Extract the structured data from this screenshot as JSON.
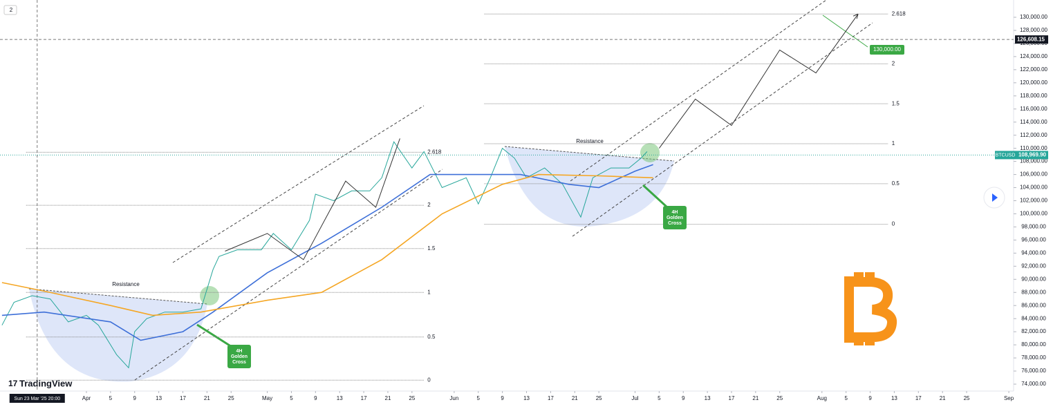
{
  "chart_data": {
    "type": "line",
    "legend_badge": "2",
    "xlim": [
      "2025-03-17T16:00",
      "2025-09-01T19:00"
    ],
    "ylim": [
      72945,
      132637
    ],
    "xticks": [
      {
        "value": "2025-04-01",
        "label": "Apr"
      },
      {
        "value": "2025-04-05",
        "label": "5"
      },
      {
        "value": "2025-04-09",
        "label": "9"
      },
      {
        "value": "2025-04-13",
        "label": "13"
      },
      {
        "value": "2025-04-17",
        "label": "17"
      },
      {
        "value": "2025-04-21",
        "label": "21"
      },
      {
        "value": "2025-04-25",
        "label": "25"
      },
      {
        "value": "2025-05-01",
        "label": "May"
      },
      {
        "value": "2025-05-05",
        "label": "5"
      },
      {
        "value": "2025-05-09",
        "label": "9"
      },
      {
        "value": "2025-05-13",
        "label": "13"
      },
      {
        "value": "2025-05-17",
        "label": "17"
      },
      {
        "value": "2025-05-21",
        "label": "21"
      },
      {
        "value": "2025-05-25",
        "label": "25"
      },
      {
        "value": "2025-06-01",
        "label": "Jun"
      },
      {
        "value": "2025-06-05",
        "label": "5"
      },
      {
        "value": "2025-06-09",
        "label": "9"
      },
      {
        "value": "2025-06-13",
        "label": "13"
      },
      {
        "value": "2025-06-17",
        "label": "17"
      },
      {
        "value": "2025-06-21",
        "label": "21"
      },
      {
        "value": "2025-06-25",
        "label": "25"
      },
      {
        "value": "2025-07-01",
        "label": "Jul"
      },
      {
        "value": "2025-07-05",
        "label": "5"
      },
      {
        "value": "2025-07-09",
        "label": "9"
      },
      {
        "value": "2025-07-13",
        "label": "13"
      },
      {
        "value": "2025-07-17",
        "label": "17"
      },
      {
        "value": "2025-07-21",
        "label": "21"
      },
      {
        "value": "2025-07-25",
        "label": "25"
      },
      {
        "value": "2025-08-01",
        "label": "Aug"
      },
      {
        "value": "2025-08-05",
        "label": "5"
      },
      {
        "value": "2025-08-09",
        "label": "9"
      },
      {
        "value": "2025-08-13",
        "label": "13"
      },
      {
        "value": "2025-08-17",
        "label": "17"
      },
      {
        "value": "2025-08-21",
        "label": "21"
      },
      {
        "value": "2025-08-25",
        "label": "25"
      },
      {
        "value": "2025-09-01",
        "label": "Sep"
      }
    ],
    "yticks": [
      {
        "value": 74000,
        "label": "74,000.00"
      },
      {
        "value": 76000,
        "label": "76,000.00"
      },
      {
        "value": 78000,
        "label": "78,000.00"
      },
      {
        "value": 80000,
        "label": "80,000.00"
      },
      {
        "value": 82000,
        "label": "82,000.00"
      },
      {
        "value": 84000,
        "label": "84,000.00"
      },
      {
        "value": 86000,
        "label": "86,000.00"
      },
      {
        "value": 88000,
        "label": "88,000.00"
      },
      {
        "value": 90000,
        "label": "90,000.00"
      },
      {
        "value": 92000,
        "label": "92,000.00"
      },
      {
        "value": 94000,
        "label": "94,000.00"
      },
      {
        "value": 96000,
        "label": "96,000.00"
      },
      {
        "value": 98000,
        "label": "98,000.00"
      },
      {
        "value": 100000,
        "label": "100,000.00"
      },
      {
        "value": 102000,
        "label": "102,000.00"
      },
      {
        "value": 104000,
        "label": "104,000.00"
      },
      {
        "value": 106000,
        "label": "106,000.00"
      },
      {
        "value": 108000,
        "label": "108,000.00"
      },
      {
        "value": 110000,
        "label": "110,000.00"
      },
      {
        "value": 112000,
        "label": "112,000.00"
      },
      {
        "value": 114000,
        "label": "114,000.00"
      },
      {
        "value": 116000,
        "label": "116,000.00"
      },
      {
        "value": 118000,
        "label": "118,000.00"
      },
      {
        "value": 120000,
        "label": "120,000.00"
      },
      {
        "value": 122000,
        "label": "122,000.00"
      },
      {
        "value": 124000,
        "label": "124,000.00"
      },
      {
        "value": 126000,
        "label": "126,000.00"
      },
      {
        "value": 128000,
        "label": "128,000.00"
      },
      {
        "value": 130000,
        "label": "130,000.00"
      }
    ],
    "series": [
      {
        "color": "#26a69a",
        "width": 1,
        "x": [
          "2025-03-18",
          "2025-03-20",
          "2025-03-23",
          "2025-03-26",
          "2025-03-29",
          "2025-04-01",
          "2025-04-03",
          "2025-04-06",
          "2025-04-08",
          "2025-04-09",
          "2025-04-11",
          "2025-04-14",
          "2025-04-17",
          "2025-04-20",
          "2025-04-22",
          "2025-04-23",
          "2025-04-26",
          "2025-04-30",
          "2025-05-02",
          "2025-05-05",
          "2025-05-08",
          "2025-05-09",
          "2025-05-12",
          "2025-05-15",
          "2025-05-18",
          "2025-05-20",
          "2025-05-22",
          "2025-05-25",
          "2025-05-27",
          "2025-05-30",
          "2025-06-03",
          "2025-06-05",
          "2025-06-07",
          "2025-06-09",
          "2025-06-11",
          "2025-06-13",
          "2025-06-16",
          "2025-06-19",
          "2025-06-22",
          "2025-06-24",
          "2025-06-27",
          "2025-06-30",
          "2025-07-02",
          "2025-07-03"
        ],
        "values": [
          83000,
          86500,
          87500,
          87000,
          83500,
          84500,
          83000,
          78500,
          76500,
          82000,
          84000,
          85000,
          85000,
          85500,
          91500,
          93500,
          94500,
          94500,
          97000,
          94500,
          99000,
          103000,
          102000,
          103500,
          103500,
          105500,
          111000,
          107000,
          109500,
          104000,
          105500,
          101500,
          105500,
          110000,
          108500,
          105500,
          107000,
          104500,
          99500,
          105500,
          107000,
          107000,
          108500,
          109500
        ]
      },
      {
        "color": "#3d6fd8",
        "width": 1.6,
        "x": [
          "2025-03-18",
          "2025-03-25",
          "2025-04-05",
          "2025-04-10",
          "2025-04-17",
          "2025-04-22",
          "2025-05-01",
          "2025-05-10",
          "2025-05-20",
          "2025-05-28",
          "2025-06-05",
          "2025-06-12",
          "2025-06-20",
          "2025-06-25",
          "2025-07-01",
          "2025-07-04"
        ],
        "values": [
          84500,
          85000,
          83500,
          80700,
          82000,
          85000,
          91000,
          95500,
          101000,
          106000,
          106000,
          106000,
          104500,
          104000,
          106500,
          107500
        ]
      },
      {
        "color": "#f5a623",
        "width": 1.6,
        "x": [
          "2025-03-18",
          "2025-03-25",
          "2025-04-05",
          "2025-04-12",
          "2025-04-20",
          "2025-05-01",
          "2025-05-10",
          "2025-05-20",
          "2025-05-30",
          "2025-06-09",
          "2025-06-15",
          "2025-06-25",
          "2025-07-04"
        ],
        "values": [
          89500,
          88200,
          86000,
          84500,
          85000,
          86800,
          88000,
          93000,
          100000,
          104500,
          106000,
          105800,
          105500
        ]
      },
      {
        "color": "#333333",
        "width": 1,
        "x": [
          "2025-04-24",
          "2025-05-01",
          "2025-05-07",
          "2025-05-14",
          "2025-05-19",
          "2025-05-23"
        ],
        "values": [
          94300,
          97000,
          93000,
          105000,
          101000,
          111500
        ]
      },
      {
        "color": "#333333",
        "width": 1,
        "x": [
          "2025-07-05",
          "2025-07-11",
          "2025-07-17",
          "2025-07-25",
          "2025-07-31",
          "2025-08-07"
        ],
        "values": [
          110000,
          117500,
          113500,
          125000,
          121500,
          130500
        ]
      }
    ],
    "fib_levels": [
      {
        "from": "2025-03-22",
        "to": "2025-05-27",
        "levels": [
          {
            "ratio": 0,
            "price": 74600
          },
          {
            "ratio": 0.5,
            "price": 81200
          },
          {
            "ratio": 1,
            "price": 88000
          },
          {
            "ratio": 1.5,
            "price": 94700
          },
          {
            "ratio": 2,
            "price": 101300
          },
          {
            "ratio": 2.618,
            "price": 109400
          }
        ]
      },
      {
        "from": "2025-06-06",
        "to": "2025-08-12",
        "levels": [
          {
            "ratio": 0,
            "price": 98400
          },
          {
            "ratio": 0.5,
            "price": 104600
          },
          {
            "ratio": 1,
            "price": 110700
          },
          {
            "ratio": 1.5,
            "price": 116800
          },
          {
            "ratio": 2,
            "price": 122900
          },
          {
            "ratio": 2.618,
            "price": 130500
          }
        ]
      }
    ],
    "annotations": {
      "resistance": [
        "Resistance",
        "Resistance"
      ],
      "golden_cross": [
        [
          "4H",
          "Golden",
          "Cross"
        ],
        [
          "4H",
          "Golden",
          "Cross"
        ]
      ],
      "target": {
        "value": 130000,
        "label": "130,000.00"
      }
    },
    "crosshair": {
      "x": "2025-03-23T20:00",
      "x_label": "Sun 23 Mar '25 20:00",
      "y": {
        "value": 126608.15,
        "label": "126,608.15"
      }
    },
    "last_price": {
      "symbol": "BTCUSD",
      "value": 108969.9,
      "label": "108,969.90"
    },
    "brand": "TradingView"
  }
}
